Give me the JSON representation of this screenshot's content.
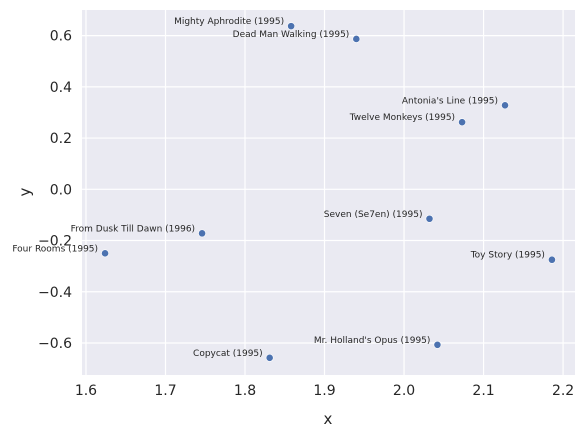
{
  "chart_data": {
    "type": "scatter",
    "title": "",
    "xlabel": "x",
    "ylabel": "y",
    "xlim": [
      1.595,
      2.215
    ],
    "ylim": [
      -0.725,
      0.7
    ],
    "xticks": [
      1.6,
      1.7,
      1.8,
      1.9,
      2.0,
      2.1,
      2.2
    ],
    "yticks": [
      -0.6,
      -0.4,
      -0.2,
      0.0,
      0.2,
      0.4,
      0.6
    ],
    "xtick_labels": [
      "1.6",
      "1.7",
      "1.8",
      "1.9",
      "2.0",
      "2.1",
      "2.2"
    ],
    "ytick_labels": [
      "−0.6",
      "−0.4",
      "−0.2",
      "0.0",
      "0.2",
      "0.4",
      "0.6"
    ],
    "grid": true,
    "colors": {
      "background": "#eaeaf2",
      "point": "#4c72b0"
    },
    "points": [
      {
        "label": "Mighty Aphrodite (1995)",
        "x": 1.858,
        "y": 0.637
      },
      {
        "label": "Dead Man Walking (1995)",
        "x": 1.94,
        "y": 0.587
      },
      {
        "label": "Antonia's Line (1995)",
        "x": 2.127,
        "y": 0.328
      },
      {
        "label": "Twelve Monkeys (1995)",
        "x": 2.073,
        "y": 0.262
      },
      {
        "label": "Seven (Se7en) (1995)",
        "x": 2.032,
        "y": -0.115
      },
      {
        "label": "From Dusk Till Dawn (1996)",
        "x": 1.746,
        "y": -0.172
      },
      {
        "label": "Four Rooms (1995)",
        "x": 1.624,
        "y": -0.25
      },
      {
        "label": "Toy Story (1995)",
        "x": 2.186,
        "y": -0.275
      },
      {
        "label": "Mr. Holland's Opus (1995)",
        "x": 2.042,
        "y": -0.607
      },
      {
        "label": "Copycat (1995)",
        "x": 1.831,
        "y": -0.658
      }
    ]
  }
}
